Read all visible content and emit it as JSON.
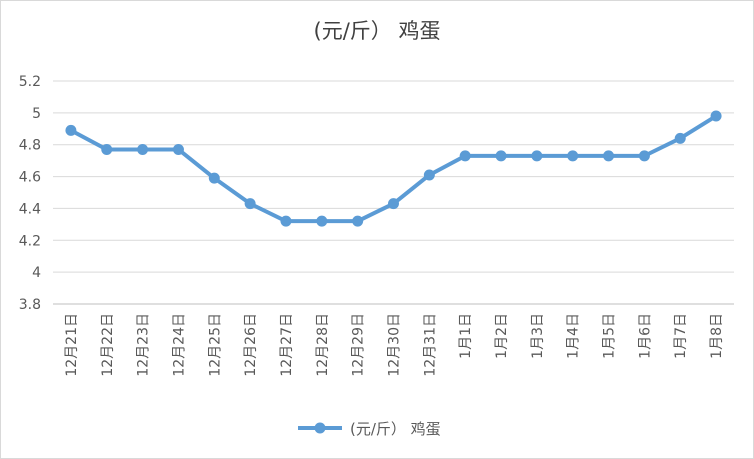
{
  "chart_data": {
    "type": "line",
    "title": "(元/斤）  鸡蛋",
    "categories": [
      "12月21日",
      "12月22日",
      "12月23日",
      "12月24日",
      "12月25日",
      "12月26日",
      "12月27日",
      "12月28日",
      "12月29日",
      "12月30日",
      "12月31日",
      "1月1日",
      "1月2日",
      "1月3日",
      "1月4日",
      "1月5日",
      "1月6日",
      "1月7日",
      "1月8日"
    ],
    "series": [
      {
        "name": "(元/斤）  鸡蛋",
        "values": [
          4.89,
          4.77,
          4.77,
          4.77,
          4.59,
          4.43,
          4.32,
          4.32,
          4.32,
          4.43,
          4.61,
          4.73,
          4.73,
          4.73,
          4.73,
          4.73,
          4.73,
          4.84,
          4.98
        ]
      }
    ],
    "ylim": [
      3.8,
      5.2
    ],
    "yticks": [
      "3.8",
      "4",
      "4.2",
      "4.4",
      "4.6",
      "4.8",
      "5",
      "5.2"
    ],
    "grid": true,
    "legend_position": "bottom",
    "line_color": "#5b9bd5",
    "grid_color": "#d9d9d9"
  }
}
